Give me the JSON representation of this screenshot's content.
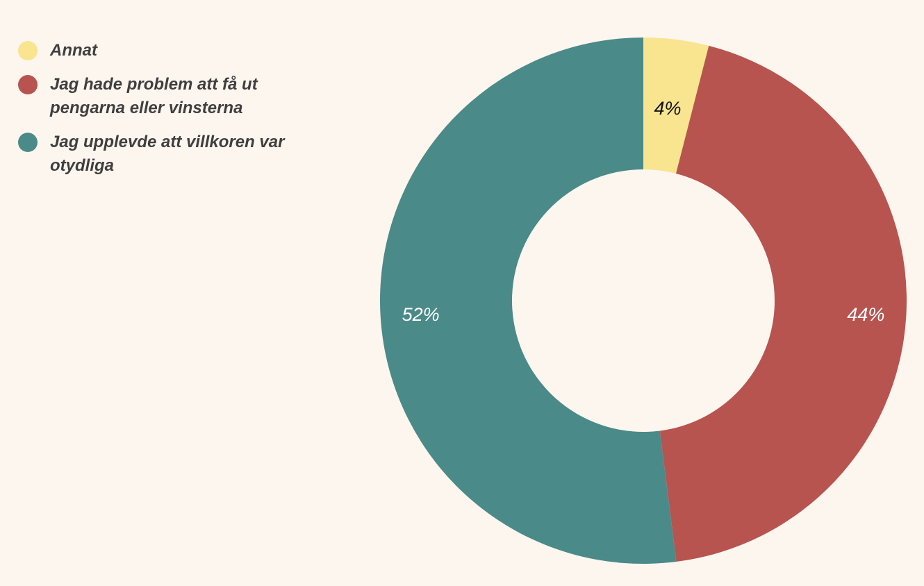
{
  "chart_data": {
    "type": "pie",
    "donut": true,
    "title": "",
    "legend_position": "top-left",
    "slices": [
      {
        "label": "Annat",
        "value": 4,
        "display": "4%",
        "color": "#f9e48f",
        "label_color": "#111111"
      },
      {
        "label": "Jag hade problem att få ut pengarna eller vinsterna",
        "value": 44,
        "display": "44%",
        "color": "#b85450",
        "label_color": "#ffffff"
      },
      {
        "label": "Jag upplevde att villkoren var otydliga",
        "value": 52,
        "display": "52%",
        "color": "#4a8a89",
        "label_color": "#ffffff"
      }
    ]
  }
}
